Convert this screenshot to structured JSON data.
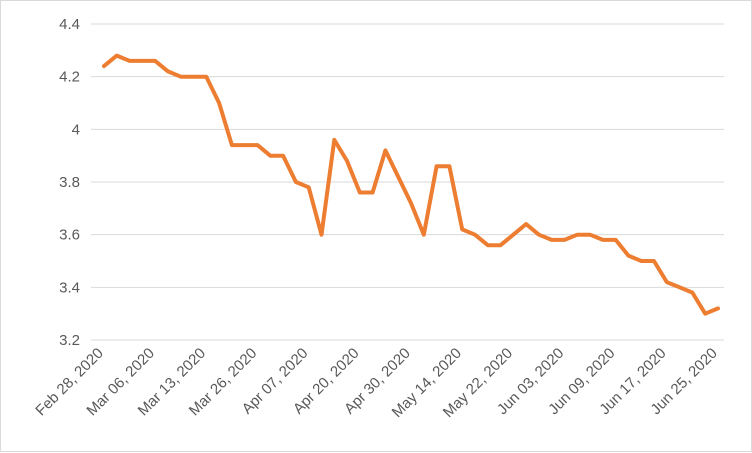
{
  "chart_data": {
    "type": "line",
    "title": "",
    "xlabel": "",
    "ylabel": "",
    "ylim": [
      3.2,
      4.4
    ],
    "yticks": [
      "3.2",
      "3.4",
      "3.6",
      "3.8",
      "4",
      "4.2",
      "4.4"
    ],
    "grid": "horizontal",
    "legend": "none",
    "color": "#ed7d31",
    "xtick_labels": [
      "Feb 28, 2020",
      "Mar 06, 2020",
      "Mar 13, 2020",
      "Mar 26, 2020",
      "Apr 07, 2020",
      "Apr 20, 2020",
      "Apr 30, 2020",
      "May 14, 2020",
      "May 22, 2020",
      "Jun 03, 2020",
      "Jun 09, 2020",
      "Jun 17, 2020",
      "Jun 25, 2020"
    ],
    "series": [
      {
        "values": [
          4.24,
          4.28,
          4.26,
          4.26,
          4.26,
          4.22,
          4.2,
          4.2,
          4.2,
          4.1,
          3.94,
          3.94,
          3.94,
          3.9,
          3.9,
          3.8,
          3.78,
          3.6,
          3.96,
          3.88,
          3.76,
          3.76,
          3.92,
          3.82,
          3.72,
          3.6,
          3.86,
          3.86,
          3.62,
          3.6,
          3.56,
          3.56,
          3.6,
          3.64,
          3.6,
          3.58,
          3.58,
          3.6,
          3.6,
          3.58,
          3.58,
          3.52,
          3.5,
          3.5,
          3.42,
          3.4,
          3.38,
          3.3,
          3.32
        ]
      }
    ]
  }
}
